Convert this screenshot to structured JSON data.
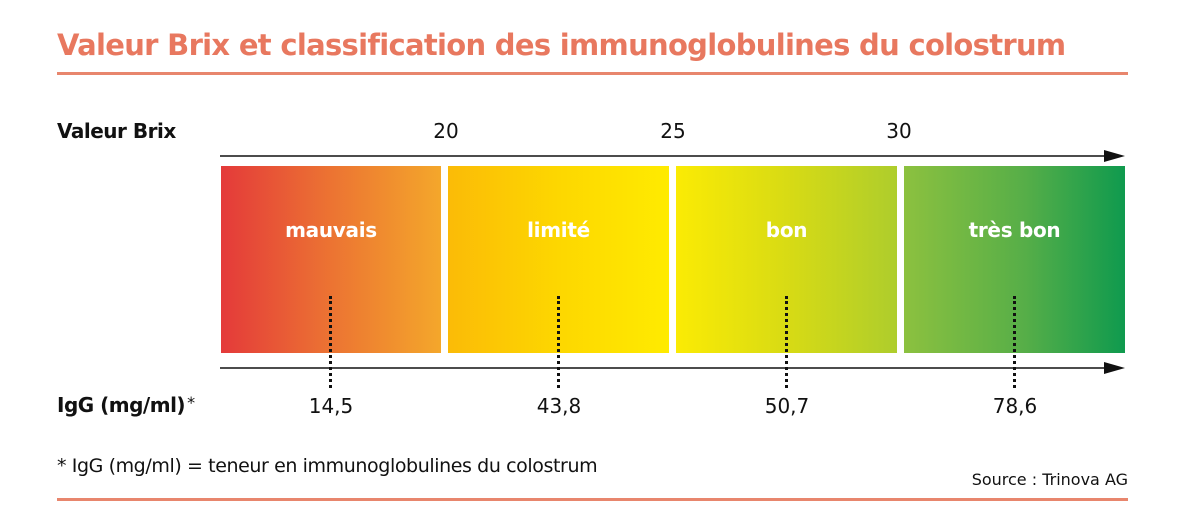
{
  "title": "Valeur Brix et classification des immunoglobulines du colostrum",
  "colors": {
    "title": "#e8785f",
    "rule": "#e8866d"
  },
  "brix": {
    "label": "Valeur Brix",
    "ticks": [
      "20",
      "25",
      "30"
    ]
  },
  "bands": [
    {
      "label": "mauvais",
      "igg": "14,5"
    },
    {
      "label": "limité",
      "igg": "43,8"
    },
    {
      "label": "bon",
      "igg": "50,7"
    },
    {
      "label": "très bon",
      "igg": "78,6"
    }
  ],
  "igg": {
    "label": "IgG (mg/ml)",
    "marker": "*"
  },
  "footnote": "* IgG (mg/ml) = teneur en immunoglobulines du colostrum",
  "source": "Source : Trinova AG"
}
